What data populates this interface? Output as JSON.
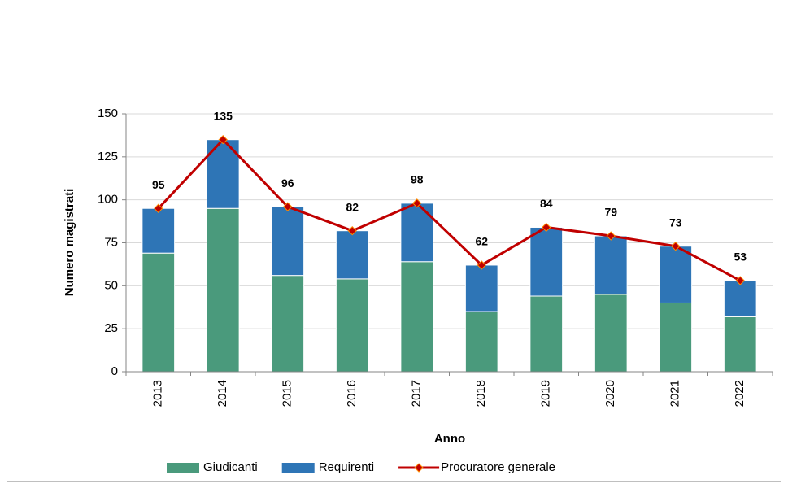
{
  "chart_data": {
    "type": "bar",
    "stacked": true,
    "categories": [
      "2013",
      "2014",
      "2015",
      "2016",
      "2017",
      "2018",
      "2019",
      "2020",
      "2021",
      "2022"
    ],
    "series": [
      {
        "name": "Giudicanti",
        "type": "bar",
        "color": "#4a9a7c",
        "values": [
          69,
          95,
          56,
          54,
          64,
          35,
          44,
          45,
          40,
          32
        ]
      },
      {
        "name": "Requirenti",
        "type": "bar",
        "color": "#2e75b6",
        "values": [
          26,
          40,
          40,
          28,
          34,
          27,
          40,
          34,
          33,
          21
        ]
      },
      {
        "name": "Procuratore generale",
        "type": "line",
        "color": "#c00000",
        "values": [
          95,
          135,
          96,
          82,
          98,
          62,
          84,
          79,
          73,
          53
        ]
      }
    ],
    "xlabel": "Anno",
    "ylabel": "Numero magistrati",
    "ylim": [
      0,
      150
    ],
    "yticks": [
      0,
      25,
      50,
      75,
      100,
      125,
      150
    ],
    "grid": true,
    "legend": "bottom"
  }
}
